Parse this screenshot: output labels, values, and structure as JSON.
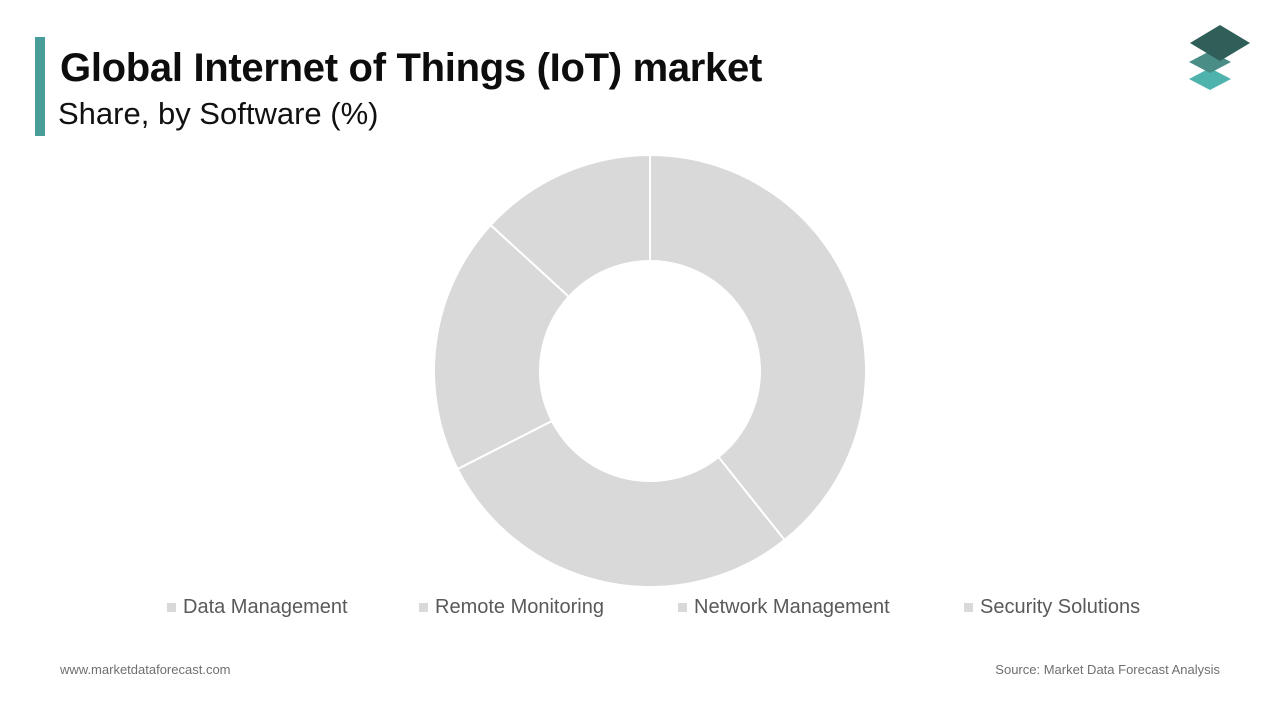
{
  "header": {
    "title": "Global Internet of Things (IoT) market",
    "subtitle": "Share, by Software (%)"
  },
  "branding": {
    "logo_icon": "stacked-layers-icon",
    "accent_color": "#4a9e9a",
    "logo_colors": [
      "#2f5f58",
      "#4a8c86",
      "#4fb3ad"
    ]
  },
  "chart_data": {
    "type": "pie",
    "donut": true,
    "categories": [
      "Data Management",
      "Remote Monitoring",
      "Network Management",
      "Security Solutions"
    ],
    "values": [
      39.3,
      28.2,
      19.3,
      13.2
    ],
    "colors": [
      "#d9d9d9",
      "#d9d9d9",
      "#d9d9d9",
      "#d9d9d9"
    ],
    "legend_position": "bottom"
  },
  "footer": {
    "website": "www.marketdataforecast.com",
    "source": "Source: Market Data Forecast Analysis"
  }
}
